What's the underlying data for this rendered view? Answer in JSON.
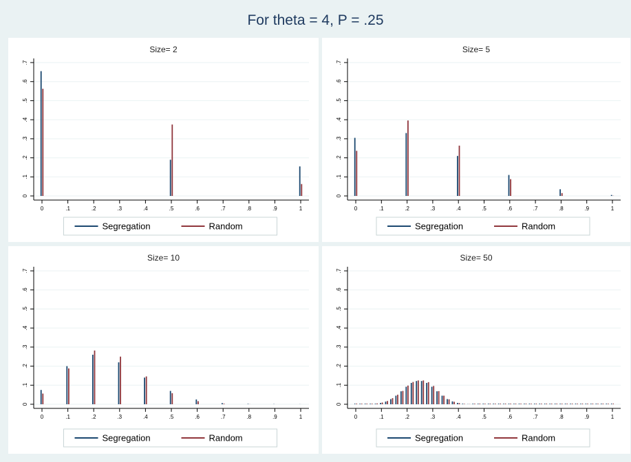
{
  "title": "For theta = 4, P = .25",
  "colors": {
    "background": "#eaf2f3",
    "panel": "#ffffff",
    "segregation": "#1a476f",
    "random": "#90353b",
    "grid": "#eaf2f3",
    "axis": "#000000"
  },
  "legend_labels": [
    "Segregation",
    "Random"
  ],
  "chart_data": [
    {
      "type": "bar",
      "title": "Size= 2",
      "xlim": [
        0,
        1
      ],
      "ylim": [
        0,
        0.7
      ],
      "xticks": [
        "0",
        ".1",
        ".2",
        ".3",
        ".4",
        ".5",
        ".6",
        ".7",
        ".8",
        ".9",
        "1"
      ],
      "yticks": [
        "0",
        ".1",
        ".2",
        ".3",
        ".4",
        ".5",
        ".6",
        ".7"
      ],
      "legend_position": "bottom",
      "series": [
        {
          "name": "Segregation",
          "x": [
            0,
            0.5,
            1
          ],
          "values": [
            0.655,
            0.19,
            0.155
          ]
        },
        {
          "name": "Random",
          "x": [
            0,
            0.5,
            1
          ],
          "values": [
            0.5625,
            0.375,
            0.0625
          ]
        }
      ]
    },
    {
      "type": "bar",
      "title": "Size= 5",
      "xlim": [
        0,
        1
      ],
      "ylim": [
        0,
        0.7
      ],
      "xticks": [
        "0",
        ".1",
        ".2",
        ".3",
        ".4",
        ".5",
        ".6",
        ".7",
        ".8",
        ".9",
        "1"
      ],
      "yticks": [
        "0",
        ".1",
        ".2",
        ".3",
        ".4",
        ".5",
        ".6",
        ".7"
      ],
      "legend_position": "bottom",
      "series": [
        {
          "name": "Segregation",
          "x": [
            0,
            0.2,
            0.4,
            0.6,
            0.8,
            1
          ],
          "values": [
            0.305,
            0.33,
            0.21,
            0.11,
            0.035,
            0.005
          ]
        },
        {
          "name": "Random",
          "x": [
            0,
            0.2,
            0.4,
            0.6,
            0.8,
            1
          ],
          "values": [
            0.237,
            0.396,
            0.264,
            0.088,
            0.015,
            0.001
          ]
        }
      ]
    },
    {
      "type": "bar",
      "title": "Size= 10",
      "xlim": [
        0,
        1
      ],
      "ylim": [
        0,
        0.7
      ],
      "xticks": [
        "0",
        ".1",
        ".2",
        ".3",
        ".4",
        ".5",
        ".6",
        ".7",
        ".8",
        ".9",
        "1"
      ],
      "yticks": [
        "0",
        ".1",
        ".2",
        ".3",
        ".4",
        ".5",
        ".6",
        ".7"
      ],
      "legend_position": "bottom",
      "series": [
        {
          "name": "Segregation",
          "x": [
            0,
            0.1,
            0.2,
            0.3,
            0.4,
            0.5,
            0.6,
            0.7,
            0.8,
            0.9,
            1
          ],
          "values": [
            0.075,
            0.2,
            0.26,
            0.22,
            0.14,
            0.07,
            0.025,
            0.006,
            0.002,
            0.001,
            0.0005
          ]
        },
        {
          "name": "Random",
          "x": [
            0,
            0.1,
            0.2,
            0.3,
            0.4,
            0.5,
            0.6,
            0.7,
            0.8,
            0.9,
            1
          ],
          "values": [
            0.056,
            0.188,
            0.282,
            0.25,
            0.146,
            0.058,
            0.016,
            0.003,
            0.0004,
            0.0001,
            0.0001
          ]
        }
      ]
    },
    {
      "type": "bar",
      "title": "Size= 50",
      "xlim": [
        0,
        1
      ],
      "ylim": [
        0,
        0.7
      ],
      "xticks": [
        "0",
        ".1",
        ".2",
        ".3",
        ".4",
        ".5",
        ".6",
        ".7",
        ".8",
        ".9",
        "1"
      ],
      "yticks": [
        "0",
        ".1",
        ".2",
        ".3",
        ".4",
        ".5",
        ".6",
        ".7"
      ],
      "legend_position": "bottom",
      "series": [
        {
          "name": "Segregation",
          "x": [
            0.08,
            0.1,
            0.12,
            0.14,
            0.16,
            0.18,
            0.2,
            0.22,
            0.24,
            0.26,
            0.28,
            0.3,
            0.32,
            0.34,
            0.36,
            0.38,
            0.4,
            0.42,
            0.44
          ],
          "values": [
            0.003,
            0.007,
            0.014,
            0.027,
            0.045,
            0.068,
            0.092,
            0.112,
            0.122,
            0.122,
            0.112,
            0.092,
            0.068,
            0.045,
            0.027,
            0.015,
            0.007,
            0.003,
            0.001
          ]
        },
        {
          "name": "Random",
          "x": [
            0.08,
            0.1,
            0.12,
            0.14,
            0.16,
            0.18,
            0.2,
            0.22,
            0.24,
            0.26,
            0.28,
            0.3,
            0.32,
            0.34,
            0.36,
            0.38,
            0.4,
            0.42,
            0.44
          ],
          "values": [
            0.004,
            0.009,
            0.017,
            0.032,
            0.05,
            0.07,
            0.098,
            0.117,
            0.125,
            0.125,
            0.116,
            0.096,
            0.069,
            0.045,
            0.026,
            0.013,
            0.006,
            0.002,
            0.001
          ]
        }
      ]
    }
  ]
}
